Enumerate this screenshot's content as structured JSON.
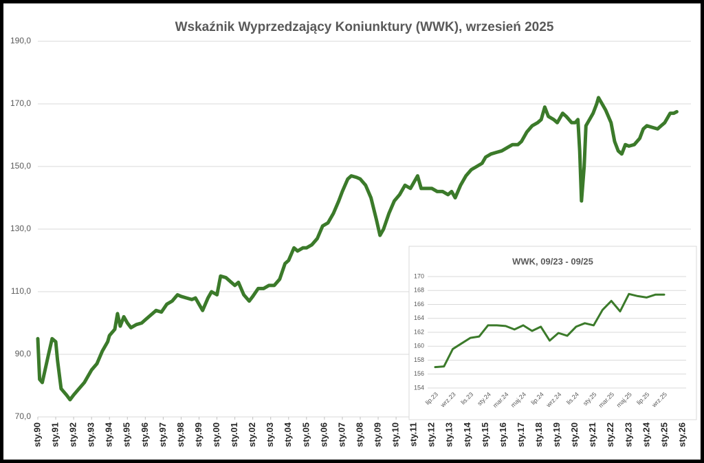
{
  "chart_data": [
    {
      "type": "line",
      "title": "Wskaźnik Wyprzedzający Koniunktury (WWK), wrzesień 2025",
      "color": "#3b7a2a",
      "grid": true,
      "x": [
        1990,
        1990.1,
        1990.25,
        1990.6,
        1990.8,
        1991,
        1991.1,
        1991.3,
        1991.6,
        1991.8,
        1992,
        1992.3,
        1992.6,
        1993,
        1993.3,
        1993.6,
        1993.9,
        1994,
        1994.3,
        1994.45,
        1994.6,
        1994.8,
        1995,
        1995.2,
        1995.5,
        1995.8,
        1996,
        1996.3,
        1996.6,
        1996.9,
        1997.2,
        1997.5,
        1997.8,
        1998,
        1998.3,
        1998.6,
        1998.8,
        1999,
        1999.2,
        1999.5,
        1999.7,
        2000,
        2000.2,
        2000.5,
        2000.8,
        2001,
        2001.2,
        2001.5,
        2001.8,
        2002,
        2002.3,
        2002.6,
        2002.9,
        2003.2,
        2003.5,
        2003.8,
        2004,
        2004.3,
        2004.5,
        2004.8,
        2005,
        2005.3,
        2005.6,
        2005.9,
        2006.2,
        2006.5,
        2006.8,
        2007,
        2007.3,
        2007.5,
        2007.8,
        2008,
        2008.3,
        2008.6,
        2008.9,
        2009.1,
        2009.3,
        2009.6,
        2009.9,
        2010.2,
        2010.5,
        2010.8,
        2011,
        2011.2,
        2011.4,
        2011.7,
        2012,
        2012.3,
        2012.6,
        2012.9,
        2013.1,
        2013.3,
        2013.6,
        2013.9,
        2014.2,
        2014.5,
        2014.8,
        2015,
        2015.3,
        2015.6,
        2015.9,
        2016.2,
        2016.5,
        2016.8,
        2017,
        2017.3,
        2017.6,
        2017.9,
        2018.1,
        2018.3,
        2018.5,
        2018.8,
        2019,
        2019.3,
        2019.5,
        2019.8,
        2020,
        2020.15,
        2020.25,
        2020.35,
        2020.5,
        2020.6,
        2020.8,
        2021,
        2021.2,
        2021.3,
        2021.5,
        2021.7,
        2022,
        2022.2,
        2022.4,
        2022.6,
        2022.8,
        2023,
        2023.3,
        2023.6,
        2023.8,
        2024,
        2024.3,
        2024.6,
        2024.8,
        2025,
        2025.3,
        2025.5,
        2025.67
      ],
      "values": [
        95,
        82,
        81,
        90,
        95,
        94,
        88,
        79,
        77,
        75.5,
        77,
        79,
        81,
        85,
        87,
        91,
        94,
        96,
        98,
        103,
        99,
        102,
        100,
        98.5,
        99.5,
        100,
        101,
        102.5,
        104,
        103.5,
        106,
        107,
        109,
        108.5,
        108,
        107.5,
        108,
        106,
        104,
        108,
        110,
        109,
        115,
        114.5,
        113,
        112,
        113,
        109,
        107,
        108.5,
        111,
        111,
        112,
        112,
        114,
        119,
        120,
        124,
        123,
        124,
        124,
        125,
        127,
        131,
        132,
        135,
        139,
        142,
        146,
        147,
        146.5,
        146,
        144,
        140,
        133,
        128,
        130,
        135,
        139,
        141,
        144,
        143,
        145,
        147,
        143,
        143,
        143,
        142,
        142,
        141,
        142,
        140,
        144,
        147,
        149,
        150,
        151,
        153,
        154,
        154.5,
        155,
        156,
        157,
        157,
        158,
        161,
        163,
        164,
        165,
        169,
        166,
        165,
        164,
        167,
        166,
        164,
        164,
        165,
        155,
        139,
        150,
        163,
        165,
        167,
        170,
        172,
        170,
        168,
        164,
        158,
        155,
        154,
        157,
        156.5,
        157,
        159,
        162,
        163,
        162.5,
        162,
        163,
        164,
        167,
        167,
        167.5
      ],
      "xlim": [
        1990,
        2026
      ],
      "xticks": [
        {
          "value": 1990,
          "label": "sty.90"
        },
        {
          "value": 1991,
          "label": "sty.91"
        },
        {
          "value": 1992,
          "label": "sty.92"
        },
        {
          "value": 1993,
          "label": "sty.93"
        },
        {
          "value": 1994,
          "label": "sty.94"
        },
        {
          "value": 1995,
          "label": "sty.95"
        },
        {
          "value": 1996,
          "label": "sty.96"
        },
        {
          "value": 1997,
          "label": "sty.97"
        },
        {
          "value": 1998,
          "label": "sty.98"
        },
        {
          "value": 1999,
          "label": "sty.99"
        },
        {
          "value": 2000,
          "label": "sty.00"
        },
        {
          "value": 2001,
          "label": "sty.01"
        },
        {
          "value": 2002,
          "label": "sty.02"
        },
        {
          "value": 2003,
          "label": "sty.03"
        },
        {
          "value": 2004,
          "label": "sty.04"
        },
        {
          "value": 2005,
          "label": "sty.05"
        },
        {
          "value": 2006,
          "label": "sty.06"
        },
        {
          "value": 2007,
          "label": "sty.07"
        },
        {
          "value": 2008,
          "label": "sty.08"
        },
        {
          "value": 2009,
          "label": "sty.09"
        },
        {
          "value": 2010,
          "label": "sty.10"
        },
        {
          "value": 2011,
          "label": "sty.11"
        },
        {
          "value": 2012,
          "label": "sty.12"
        },
        {
          "value": 2013,
          "label": "sty.13"
        },
        {
          "value": 2014,
          "label": "sty.14"
        },
        {
          "value": 2015,
          "label": "sty.15"
        },
        {
          "value": 2016,
          "label": "sty.16"
        },
        {
          "value": 2017,
          "label": "sty.17"
        },
        {
          "value": 2018,
          "label": "sty.18"
        },
        {
          "value": 2019,
          "label": "sty.19"
        },
        {
          "value": 2020,
          "label": "sty.20"
        },
        {
          "value": 2021,
          "label": "sty.21"
        },
        {
          "value": 2022,
          "label": "sty.22"
        },
        {
          "value": 2023,
          "label": "sty.23"
        },
        {
          "value": 2024,
          "label": "sty.24"
        },
        {
          "value": 2025,
          "label": "sty.25"
        },
        {
          "value": 2026,
          "label": "sty.26"
        }
      ],
      "ylim": [
        70,
        190
      ],
      "yticks": [
        {
          "value": 70,
          "label": "70,0"
        },
        {
          "value": 90,
          "label": "90,0"
        },
        {
          "value": 110,
          "label": "110,0"
        },
        {
          "value": 130,
          "label": "130,0"
        },
        {
          "value": 150,
          "label": "150,0"
        },
        {
          "value": 170,
          "label": "170,0"
        },
        {
          "value": 190,
          "label": "190,0"
        }
      ]
    },
    {
      "type": "line",
      "title": "WWK, 09/23 - 09/25",
      "color": "#3b7a2a",
      "grid": true,
      "categories": [
        "lip.23",
        null,
        "wrz.23",
        null,
        "lis.23",
        null,
        "sty.24",
        null,
        "mar.24",
        null,
        "maj.24",
        null,
        "lip.24",
        null,
        "wrz.24",
        null,
        "lis.24",
        null,
        "sty.25",
        null,
        "mar.25",
        null,
        "maj.25",
        null,
        "lip.25",
        null,
        "wrz.25"
      ],
      "values": [
        157.0,
        157.1,
        159.6,
        160.4,
        161.2,
        161.4,
        163.0,
        163.0,
        162.9,
        162.4,
        163.0,
        162.2,
        162.8,
        160.8,
        161.9,
        161.5,
        162.8,
        163.3,
        163.0,
        165.2,
        166.5,
        165.0,
        167.5,
        167.2,
        167.0,
        167.4,
        167.4
      ],
      "ylim": [
        154,
        170
      ],
      "yticks": [
        154,
        156,
        158,
        160,
        162,
        164,
        166,
        168,
        170
      ]
    }
  ]
}
